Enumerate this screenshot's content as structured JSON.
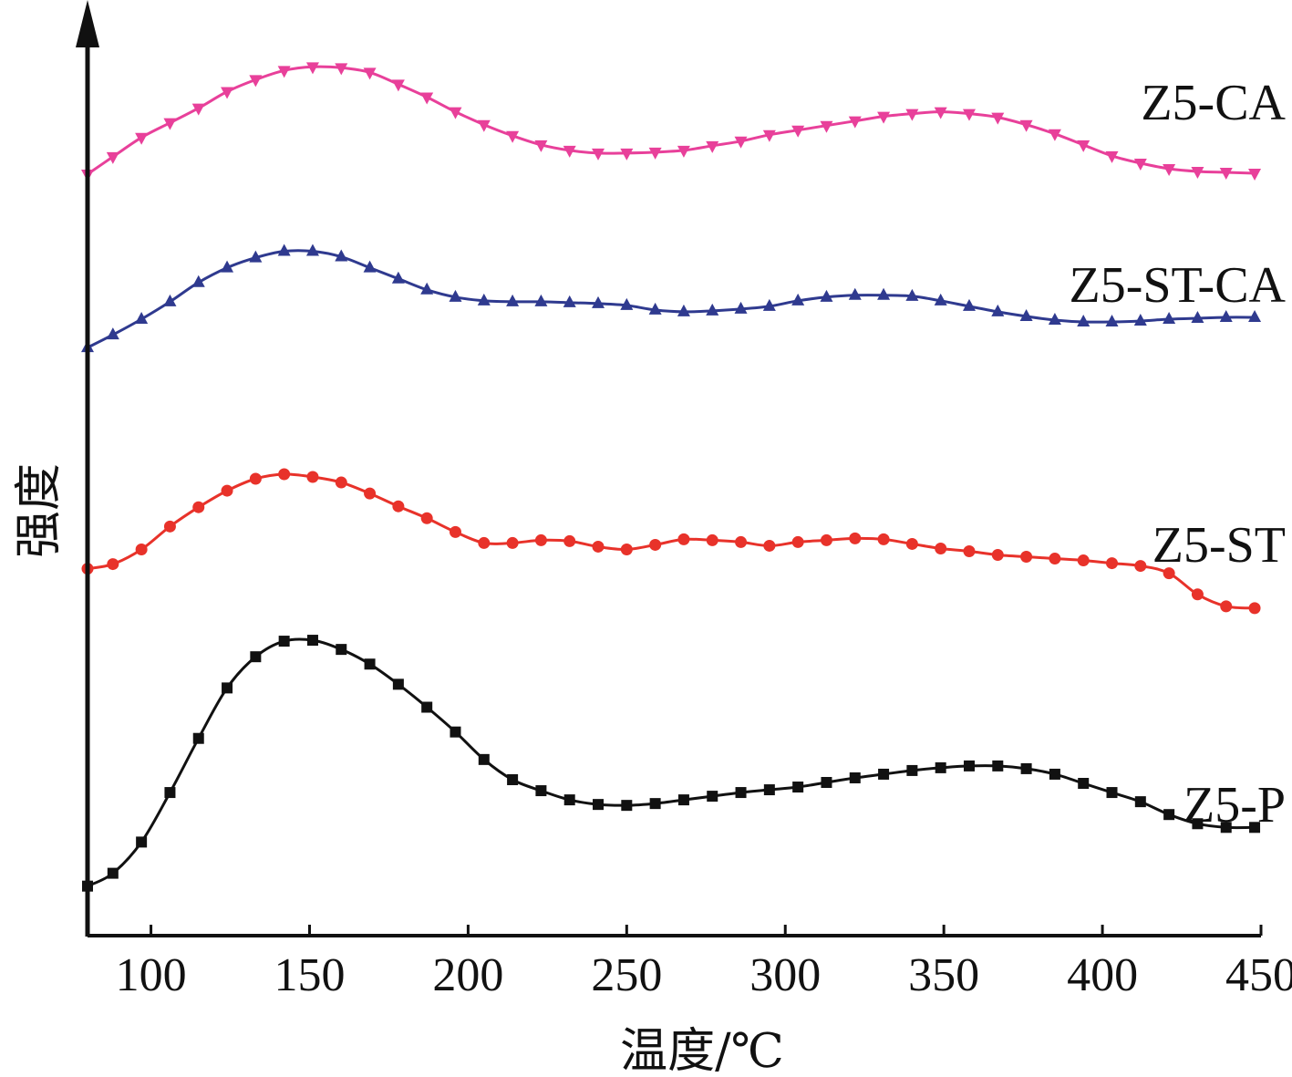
{
  "chart_data": {
    "type": "line",
    "xlabel": "温度/℃",
    "ylabel": "强度",
    "xlim": [
      80,
      450
    ],
    "ylim": [
      0,
      100
    ],
    "x_ticks": [
      100,
      150,
      200,
      250,
      300,
      350,
      400,
      450
    ],
    "y_ticks_shown": false,
    "grid": false,
    "legend": "inline-right",
    "series": [
      {
        "name": "Z5-CA",
        "color": "#e8409a",
        "marker": "triangle-down",
        "x": [
          80,
          88,
          97,
          106,
          115,
          124,
          133,
          142,
          151,
          160,
          169,
          178,
          187,
          196,
          205,
          214,
          223,
          232,
          241,
          250,
          259,
          268,
          277,
          286,
          295,
          304,
          313,
          322,
          331,
          340,
          349,
          358,
          367,
          376,
          385,
          394,
          403,
          412,
          421,
          430,
          439,
          448
        ],
        "y": [
          83.0,
          84.9,
          87.0,
          88.6,
          90.2,
          92.0,
          93.3,
          94.3,
          94.7,
          94.6,
          94.1,
          92.8,
          91.4,
          89.8,
          88.4,
          87.2,
          86.2,
          85.6,
          85.3,
          85.3,
          85.4,
          85.6,
          86.1,
          86.6,
          87.3,
          87.8,
          88.3,
          88.8,
          89.3,
          89.6,
          89.8,
          89.6,
          89.2,
          88.4,
          87.4,
          86.2,
          85.0,
          84.2,
          83.6,
          83.3,
          83.2,
          83.1
        ]
      },
      {
        "name": "Z5-ST-CA",
        "color": "#2f3a8f",
        "marker": "triangle-up",
        "x": [
          80,
          88,
          97,
          106,
          115,
          124,
          133,
          142,
          151,
          160,
          169,
          178,
          187,
          196,
          205,
          214,
          223,
          232,
          241,
          250,
          259,
          268,
          277,
          286,
          295,
          304,
          313,
          322,
          331,
          340,
          349,
          358,
          367,
          376,
          385,
          394,
          403,
          412,
          421,
          430,
          439,
          448
        ],
        "y": [
          64.1,
          65.5,
          67.2,
          69.1,
          71.2,
          72.8,
          73.9,
          74.6,
          74.6,
          74.0,
          72.8,
          71.6,
          70.4,
          69.6,
          69.2,
          69.1,
          69.1,
          69.0,
          68.9,
          68.7,
          68.2,
          68.0,
          68.1,
          68.3,
          68.6,
          69.2,
          69.6,
          69.8,
          69.8,
          69.7,
          69.2,
          68.6,
          68.0,
          67.5,
          67.1,
          66.9,
          66.9,
          67.0,
          67.2,
          67.3,
          67.4,
          67.4
        ]
      },
      {
        "name": "Z5-ST",
        "color": "#e8322a",
        "marker": "circle",
        "x": [
          80,
          88,
          97,
          106,
          115,
          124,
          133,
          142,
          151,
          160,
          169,
          178,
          187,
          196,
          205,
          214,
          223,
          232,
          241,
          250,
          259,
          268,
          277,
          286,
          295,
          304,
          313,
          322,
          331,
          340,
          349,
          358,
          367,
          376,
          385,
          394,
          403,
          412,
          421,
          430,
          439,
          448
        ],
        "y": [
          40.0,
          40.5,
          42.1,
          44.6,
          46.7,
          48.5,
          49.8,
          50.3,
          50.0,
          49.4,
          48.2,
          46.8,
          45.5,
          44.0,
          42.8,
          42.8,
          43.1,
          43.0,
          42.4,
          42.1,
          42.6,
          43.2,
          43.1,
          42.9,
          42.5,
          42.9,
          43.1,
          43.3,
          43.2,
          42.7,
          42.2,
          41.9,
          41.5,
          41.3,
          41.1,
          40.9,
          40.6,
          40.3,
          39.5,
          37.2,
          35.9,
          35.7
        ]
      },
      {
        "name": "Z5-P",
        "color": "#111111",
        "marker": "square",
        "x": [
          80,
          88,
          97,
          106,
          115,
          124,
          133,
          142,
          151,
          160,
          169,
          178,
          187,
          196,
          205,
          214,
          223,
          232,
          241,
          250,
          259,
          268,
          277,
          286,
          295,
          304,
          313,
          322,
          331,
          340,
          349,
          358,
          367,
          376,
          385,
          394,
          403,
          412,
          421,
          430,
          439,
          448
        ],
        "y": [
          5.4,
          6.8,
          10.2,
          15.6,
          21.5,
          27.0,
          30.4,
          32.1,
          32.2,
          31.2,
          29.6,
          27.4,
          24.9,
          22.2,
          19.2,
          17.0,
          15.8,
          14.8,
          14.3,
          14.2,
          14.4,
          14.8,
          15.2,
          15.6,
          15.9,
          16.2,
          16.7,
          17.2,
          17.6,
          18.0,
          18.3,
          18.5,
          18.5,
          18.2,
          17.6,
          16.6,
          15.6,
          14.6,
          13.2,
          12.2,
          11.8,
          11.8
        ]
      }
    ]
  }
}
